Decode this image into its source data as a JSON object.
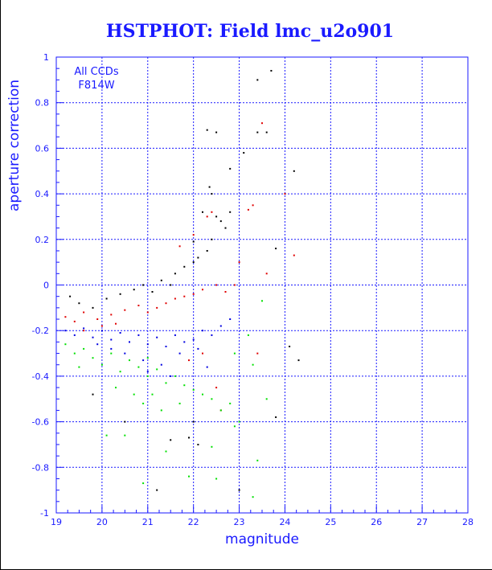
{
  "chart_data": {
    "type": "scatter",
    "title": "HSTPHOT: Field lmc_u2o901",
    "xlabel": "magnitude",
    "ylabel": "aperture correction",
    "xlim": [
      19,
      28
    ],
    "ylim": [
      -1,
      1
    ],
    "x_ticks": [
      "19",
      "20",
      "21",
      "22",
      "23",
      "24",
      "25",
      "26",
      "27",
      "28"
    ],
    "y_ticks": [
      "-1",
      "-0.8",
      "-0.6",
      "-0.4",
      "-0.2",
      "0",
      "0.2",
      "0.4",
      "0.6",
      "0.8",
      "1"
    ],
    "grid": true,
    "annotations": [
      "All CCDs",
      "F814W"
    ],
    "colors": {
      "axis": "#1a1aff",
      "grid": "#1a1aff",
      "title": "#1a1aff"
    },
    "series": [
      {
        "color": "#000000",
        "points": [
          [
            19.3,
            -0.05
          ],
          [
            19.5,
            -0.08
          ],
          [
            19.8,
            -0.1
          ],
          [
            20.1,
            -0.06
          ],
          [
            20.4,
            -0.04
          ],
          [
            20.7,
            -0.02
          ],
          [
            20.9,
            0.0
          ],
          [
            21.1,
            -0.03
          ],
          [
            21.3,
            0.02
          ],
          [
            21.5,
            0.0
          ],
          [
            21.6,
            0.05
          ],
          [
            21.8,
            0.08
          ],
          [
            22.0,
            0.1
          ],
          [
            22.1,
            0.12
          ],
          [
            22.3,
            0.15
          ],
          [
            22.4,
            0.2
          ],
          [
            22.5,
            0.3
          ],
          [
            22.6,
            0.28
          ],
          [
            22.7,
            0.25
          ],
          [
            22.8,
            0.32
          ],
          [
            22.35,
            0.43
          ],
          [
            22.4,
            0.4
          ],
          [
            22.3,
            0.68
          ],
          [
            22.5,
            0.67
          ],
          [
            22.8,
            0.51
          ],
          [
            23.1,
            0.58
          ],
          [
            23.4,
            0.67
          ],
          [
            23.6,
            0.67
          ],
          [
            23.4,
            0.9
          ],
          [
            23.7,
            0.94
          ],
          [
            23.8,
            0.16
          ],
          [
            24.2,
            0.5
          ],
          [
            22.0,
            -0.6
          ],
          [
            22.1,
            -0.7
          ],
          [
            21.5,
            -0.68
          ],
          [
            21.2,
            -0.9
          ],
          [
            23.0,
            -0.9
          ],
          [
            23.8,
            -0.58
          ],
          [
            24.1,
            -0.27
          ],
          [
            24.3,
            -0.33
          ],
          [
            22.2,
            0.32
          ],
          [
            22.0,
            0.19
          ],
          [
            20.5,
            -0.6
          ],
          [
            19.8,
            -0.48
          ],
          [
            21.9,
            -0.67
          ]
        ]
      },
      {
        "color": "#e00000",
        "points": [
          [
            19.2,
            -0.14
          ],
          [
            19.4,
            -0.16
          ],
          [
            19.6,
            -0.12
          ],
          [
            19.9,
            -0.15
          ],
          [
            20.2,
            -0.13
          ],
          [
            20.5,
            -0.11
          ],
          [
            20.8,
            -0.09
          ],
          [
            21.0,
            -0.12
          ],
          [
            21.2,
            -0.1
          ],
          [
            21.4,
            -0.08
          ],
          [
            21.6,
            -0.06
          ],
          [
            21.8,
            -0.05
          ],
          [
            22.0,
            -0.04
          ],
          [
            22.2,
            -0.02
          ],
          [
            22.5,
            0.0
          ],
          [
            22.7,
            -0.03
          ],
          [
            22.9,
            0.0
          ],
          [
            23.3,
            0.35
          ],
          [
            23.5,
            0.71
          ],
          [
            23.0,
            0.1
          ],
          [
            23.6,
            0.05
          ],
          [
            24.0,
            0.4
          ],
          [
            24.2,
            0.13
          ],
          [
            23.4,
            -0.3
          ],
          [
            22.4,
            0.32
          ],
          [
            21.7,
            0.17
          ],
          [
            22.0,
            0.22
          ],
          [
            22.3,
            0.3
          ],
          [
            23.2,
            0.33
          ],
          [
            22.2,
            -0.3
          ],
          [
            22.5,
            -0.45
          ],
          [
            21.9,
            -0.33
          ],
          [
            22.6,
            -0.55
          ],
          [
            19.6,
            -0.2
          ],
          [
            20.0,
            -0.18
          ],
          [
            20.3,
            -0.17
          ]
        ]
      },
      {
        "color": "#0000e0",
        "points": [
          [
            19.2,
            -0.2
          ],
          [
            19.4,
            -0.22
          ],
          [
            19.6,
            -0.19
          ],
          [
            19.8,
            -0.23
          ],
          [
            20.0,
            -0.2
          ],
          [
            20.2,
            -0.24
          ],
          [
            20.4,
            -0.21
          ],
          [
            20.6,
            -0.25
          ],
          [
            20.8,
            -0.22
          ],
          [
            21.0,
            -0.26
          ],
          [
            21.2,
            -0.23
          ],
          [
            21.4,
            -0.27
          ],
          [
            21.6,
            -0.22
          ],
          [
            21.8,
            -0.25
          ],
          [
            22.0,
            -0.24
          ],
          [
            22.2,
            -0.2
          ],
          [
            22.4,
            -0.22
          ],
          [
            22.6,
            -0.18
          ],
          [
            22.8,
            -0.15
          ],
          [
            20.5,
            -0.3
          ],
          [
            20.9,
            -0.33
          ],
          [
            21.3,
            -0.35
          ],
          [
            21.7,
            -0.3
          ],
          [
            22.1,
            -0.28
          ],
          [
            20.2,
            -0.28
          ],
          [
            19.9,
            -0.26
          ],
          [
            21.5,
            -0.4
          ],
          [
            22.3,
            -0.36
          ],
          [
            21.0,
            -0.38
          ]
        ]
      },
      {
        "color": "#00e000",
        "points": [
          [
            19.2,
            -0.26
          ],
          [
            19.4,
            -0.3
          ],
          [
            19.6,
            -0.28
          ],
          [
            19.8,
            -0.32
          ],
          [
            20.0,
            -0.35
          ],
          [
            20.2,
            -0.3
          ],
          [
            20.4,
            -0.38
          ],
          [
            20.6,
            -0.33
          ],
          [
            20.8,
            -0.36
          ],
          [
            21.0,
            -0.4
          ],
          [
            21.2,
            -0.37
          ],
          [
            21.4,
            -0.43
          ],
          [
            21.6,
            -0.4
          ],
          [
            21.8,
            -0.44
          ],
          [
            22.0,
            -0.46
          ],
          [
            22.2,
            -0.48
          ],
          [
            22.4,
            -0.5
          ],
          [
            22.6,
            -0.55
          ],
          [
            22.8,
            -0.52
          ],
          [
            23.0,
            -0.6
          ],
          [
            20.1,
            -0.66
          ],
          [
            20.5,
            -0.66
          ],
          [
            20.9,
            -0.52
          ],
          [
            21.1,
            -0.48
          ],
          [
            21.3,
            -0.55
          ],
          [
            21.7,
            -0.52
          ],
          [
            21.9,
            -0.84
          ],
          [
            22.4,
            -0.71
          ],
          [
            22.9,
            -0.62
          ],
          [
            23.3,
            -0.93
          ],
          [
            23.4,
            -0.77
          ],
          [
            22.5,
            -0.85
          ],
          [
            20.9,
            -0.87
          ],
          [
            21.4,
            -0.73
          ],
          [
            23.2,
            -0.22
          ],
          [
            23.5,
            -0.07
          ],
          [
            23.3,
            -0.35
          ],
          [
            23.6,
            -0.5
          ],
          [
            22.9,
            -0.3
          ],
          [
            21.0,
            -0.32
          ],
          [
            19.5,
            -0.36
          ],
          [
            20.3,
            -0.45
          ],
          [
            20.7,
            -0.48
          ]
        ]
      }
    ]
  }
}
